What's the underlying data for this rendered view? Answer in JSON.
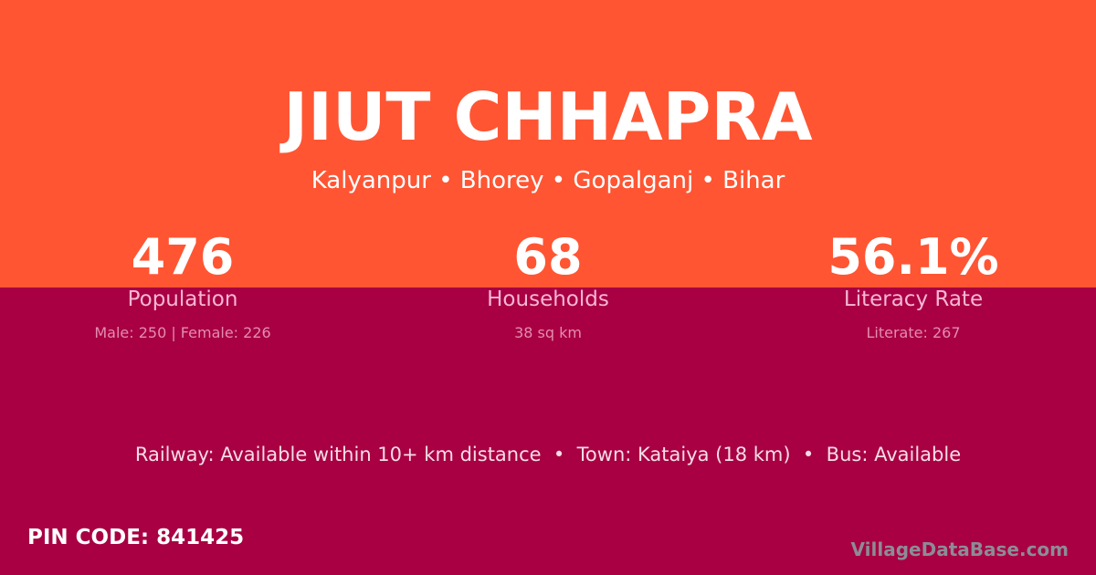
{
  "title": "JIUT CHHAPRA",
  "subtitle": "Kalyanpur • Bhorey • Gopalganj • Bihar",
  "stats": [
    {
      "value": "476",
      "label": "Population",
      "detail": "Male: 250 | Female: 226"
    },
    {
      "value": "68",
      "label": "Households",
      "detail": "38 sq km"
    },
    {
      "value": "56.1%",
      "label": "Literacy Rate",
      "detail": "Literate: 267"
    }
  ],
  "facilities": "Railway: Available within 10+ km distance  •  Town: Kataiya (18 km)  •  Bus: Available",
  "pin": "PIN CODE: 841425",
  "brand": "VillageDataBase.com",
  "colors": {
    "top": "#FF5533",
    "bottom": "#A80042"
  }
}
